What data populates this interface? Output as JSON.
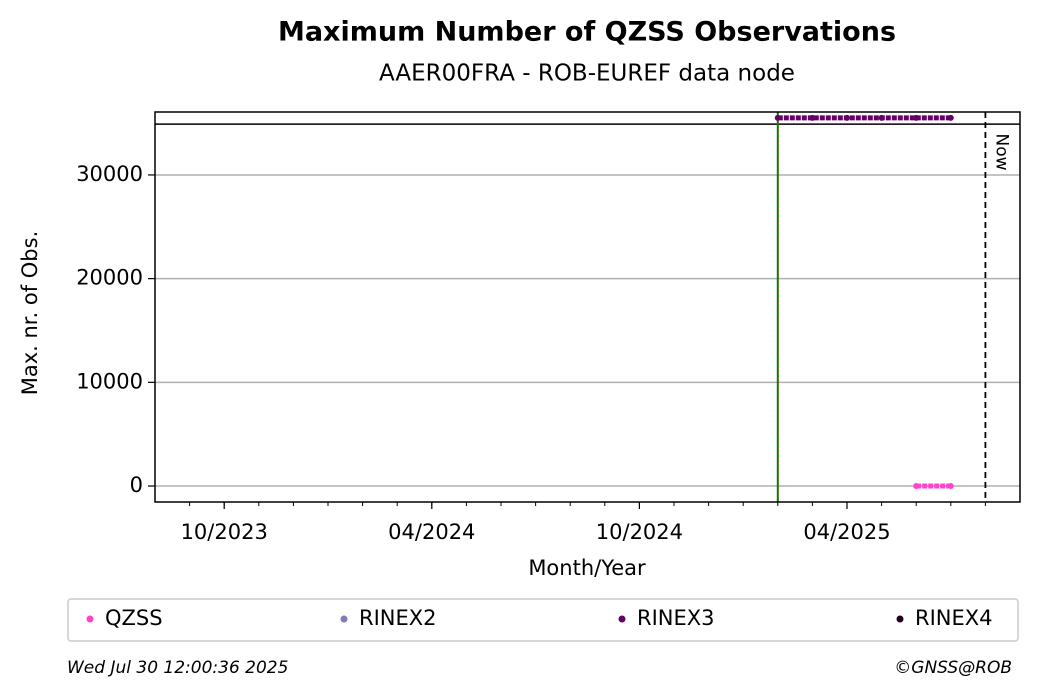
{
  "chart_data": {
    "type": "scatter",
    "title": "Maximum Number of QZSS Observations",
    "subtitle": "AAER00FRA - ROB-EUREF data node",
    "x_label": "Month/Year",
    "y_label": "Max. nr. of Obs.",
    "xlim": [
      "2023-08",
      "2025-09"
    ],
    "xticks": [
      {
        "value": "2023-10",
        "label": "10/2023"
      },
      {
        "value": "2024-04",
        "label": "04/2024"
      },
      {
        "value": "2024-10",
        "label": "10/2024"
      },
      {
        "value": "2025-04",
        "label": "04/2025"
      }
    ],
    "ylim": [
      -1540,
      36070
    ],
    "yticks": [
      0,
      10000,
      20000,
      30000
    ],
    "grid": true,
    "max_line": 34900,
    "start_line": {
      "x": "2025-02",
      "color": "#008000",
      "dash_color": "#ff0000"
    },
    "now_line": {
      "x": "2025-08",
      "label": "Now"
    },
    "series": [
      {
        "name": "QZSS",
        "color": "#ff44cc",
        "x": [
          "2025-06",
          "2025-07"
        ],
        "values": [
          0,
          0
        ]
      },
      {
        "name": "RINEX2",
        "color": "#8877bb",
        "x": [],
        "values": []
      },
      {
        "name": "RINEX3",
        "color": "#660066",
        "x": [
          "2025-02",
          "2025-03",
          "2025-04",
          "2025-05",
          "2025-06",
          "2025-07"
        ],
        "values": [
          35500,
          35500,
          35500,
          35500,
          35500,
          35500
        ]
      },
      {
        "name": "RINEX4",
        "color": "#220022",
        "x": [],
        "values": []
      }
    ],
    "footer_left": "Wed Jul 30 12:00:36 2025",
    "footer_right": "©GNSS@ROB"
  }
}
